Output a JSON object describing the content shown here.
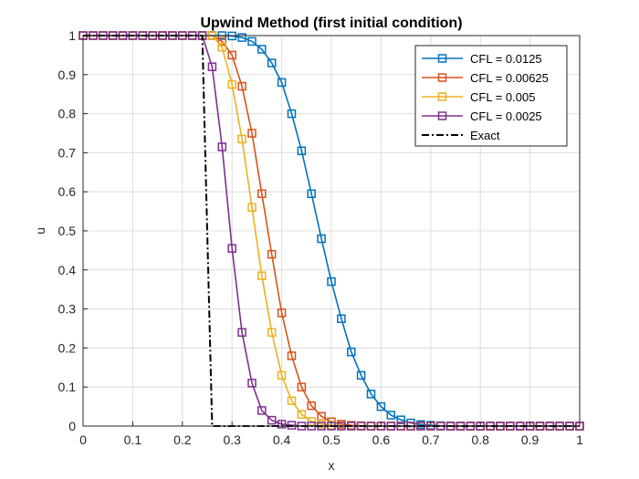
{
  "chart_data": {
    "type": "line",
    "title": "Upwind Method (first initial condition)",
    "xlabel": "x",
    "ylabel": "u",
    "xlim": [
      0,
      1
    ],
    "ylim": [
      0,
      1
    ],
    "xticks": [
      "0",
      "0.1",
      "0.2",
      "0.3",
      "0.4",
      "0.5",
      "0.6",
      "0.7",
      "0.8",
      "0.9",
      "1"
    ],
    "yticks": [
      "0",
      "0.1",
      "0.2",
      "0.3",
      "0.4",
      "0.5",
      "0.6",
      "0.7",
      "0.8",
      "0.9",
      "1"
    ],
    "grid": true,
    "legend_position": "top-right",
    "series": [
      {
        "name": "CFL = 0.0125",
        "color": "#0072BD",
        "marker": "square",
        "line_style": "solid",
        "x": [
          0,
          0.02,
          0.04,
          0.06,
          0.08,
          0.1,
          0.12,
          0.14,
          0.16,
          0.18,
          0.2,
          0.22,
          0.24,
          0.26,
          0.28,
          0.3,
          0.32,
          0.34,
          0.36,
          0.38,
          0.4,
          0.42,
          0.44,
          0.46,
          0.48,
          0.5,
          0.52,
          0.54,
          0.56,
          0.58,
          0.6,
          0.62,
          0.64,
          0.66,
          0.68,
          0.7,
          0.72,
          0.74,
          0.76,
          0.78,
          0.8,
          0.82,
          0.84,
          0.86,
          0.88,
          0.9,
          0.92,
          0.94,
          0.96,
          0.98,
          1
        ],
        "y": [
          1,
          1,
          1,
          1,
          1,
          1,
          1,
          1,
          1,
          1,
          1,
          1,
          1,
          1,
          1,
          0.999,
          0.995,
          0.985,
          0.965,
          0.93,
          0.88,
          0.8,
          0.705,
          0.595,
          0.48,
          0.37,
          0.275,
          0.19,
          0.13,
          0.082,
          0.05,
          0.028,
          0.016,
          0.008,
          0.004,
          0.002,
          0.001,
          0,
          0,
          0,
          0,
          0,
          0,
          0,
          0,
          0,
          0,
          0,
          0,
          0,
          0
        ]
      },
      {
        "name": "CFL = 0.00625",
        "color": "#D95319",
        "marker": "square",
        "line_style": "solid",
        "x": [
          0,
          0.02,
          0.04,
          0.06,
          0.08,
          0.1,
          0.12,
          0.14,
          0.16,
          0.18,
          0.2,
          0.22,
          0.24,
          0.26,
          0.28,
          0.3,
          0.32,
          0.34,
          0.36,
          0.38,
          0.4,
          0.42,
          0.44,
          0.46,
          0.48,
          0.5,
          0.52,
          0.54,
          0.56,
          0.58,
          0.6,
          0.62,
          0.64,
          0.66,
          0.68,
          0.7,
          0.72,
          0.74,
          0.76,
          0.78,
          0.8,
          0.82,
          0.84,
          0.86,
          0.88,
          0.9,
          0.92,
          0.94,
          0.96,
          0.98,
          1
        ],
        "y": [
          1,
          1,
          1,
          1,
          1,
          1,
          1,
          1,
          1,
          1,
          1,
          1,
          1,
          1,
          0.985,
          0.95,
          0.87,
          0.75,
          0.595,
          0.44,
          0.29,
          0.18,
          0.1,
          0.052,
          0.025,
          0.011,
          0.005,
          0.002,
          0.001,
          0,
          0,
          0,
          0,
          0,
          0,
          0,
          0,
          0,
          0,
          0,
          0,
          0,
          0,
          0,
          0,
          0,
          0,
          0,
          0,
          0,
          0
        ]
      },
      {
        "name": "CFL = 0.005",
        "color": "#EDB120",
        "marker": "square",
        "line_style": "solid",
        "x": [
          0,
          0.02,
          0.04,
          0.06,
          0.08,
          0.1,
          0.12,
          0.14,
          0.16,
          0.18,
          0.2,
          0.22,
          0.24,
          0.26,
          0.28,
          0.3,
          0.32,
          0.34,
          0.36,
          0.38,
          0.4,
          0.42,
          0.44,
          0.46,
          0.48,
          0.5,
          0.52,
          0.54,
          0.56,
          0.58,
          0.6,
          0.62,
          0.64,
          0.66,
          0.68,
          0.7,
          0.72,
          0.74,
          0.76,
          0.78,
          0.8,
          0.82,
          0.84,
          0.86,
          0.88,
          0.9,
          0.92,
          0.94,
          0.96,
          0.98,
          1
        ],
        "y": [
          1,
          1,
          1,
          1,
          1,
          1,
          1,
          1,
          1,
          1,
          1,
          1,
          1,
          1,
          0.97,
          0.875,
          0.735,
          0.56,
          0.385,
          0.24,
          0.13,
          0.065,
          0.03,
          0.012,
          0.005,
          0.002,
          0.001,
          0,
          0,
          0,
          0,
          0,
          0,
          0,
          0,
          0,
          0,
          0,
          0,
          0,
          0,
          0,
          0,
          0,
          0,
          0,
          0,
          0,
          0,
          0,
          0
        ]
      },
      {
        "name": "CFL = 0.0025",
        "color": "#7E2F8E",
        "marker": "square",
        "line_style": "solid",
        "x": [
          0,
          0.02,
          0.04,
          0.06,
          0.08,
          0.1,
          0.12,
          0.14,
          0.16,
          0.18,
          0.2,
          0.22,
          0.24,
          0.26,
          0.28,
          0.3,
          0.32,
          0.34,
          0.36,
          0.38,
          0.4,
          0.42,
          0.44,
          0.46,
          0.48,
          0.5,
          0.52,
          0.54,
          0.56,
          0.58,
          0.6,
          0.62,
          0.64,
          0.66,
          0.68,
          0.7,
          0.72,
          0.74,
          0.76,
          0.78,
          0.8,
          0.82,
          0.84,
          0.86,
          0.88,
          0.9,
          0.92,
          0.94,
          0.96,
          0.98,
          1
        ],
        "y": [
          1,
          1,
          1,
          1,
          1,
          1,
          1,
          1,
          1,
          1,
          1,
          1,
          1,
          0.92,
          0.715,
          0.455,
          0.24,
          0.11,
          0.04,
          0.015,
          0.005,
          0.002,
          0,
          0,
          0,
          0,
          0,
          0,
          0,
          0,
          0,
          0,
          0,
          0,
          0,
          0,
          0,
          0,
          0,
          0,
          0,
          0,
          0,
          0,
          0,
          0,
          0,
          0,
          0,
          0,
          0
        ]
      },
      {
        "name": "Exact",
        "color": "#000000",
        "marker": "none",
        "line_style": "dash-dot",
        "x": [
          0,
          0.24,
          0.26,
          1
        ],
        "y": [
          1,
          1,
          0,
          0
        ]
      }
    ]
  }
}
